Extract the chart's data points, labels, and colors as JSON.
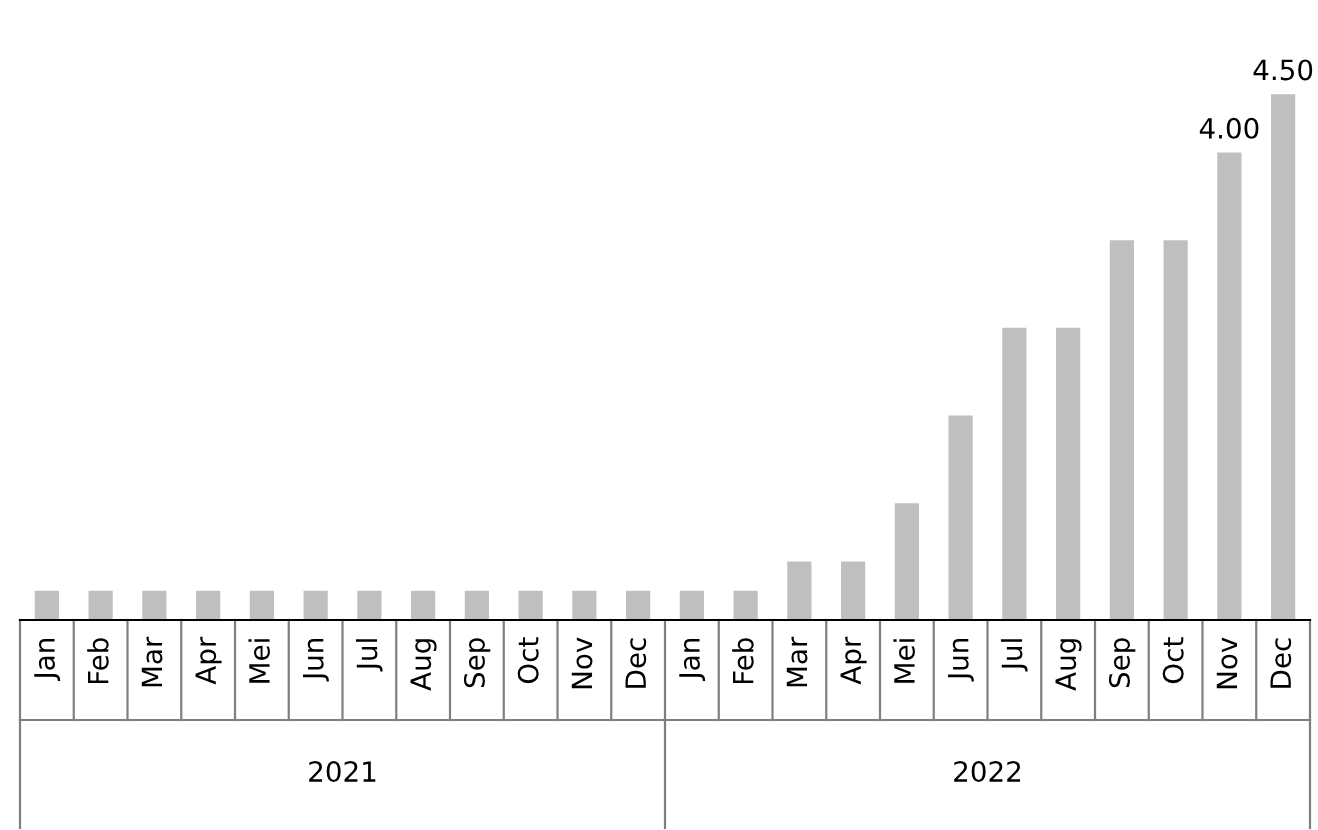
{
  "chart_data": {
    "type": "bar",
    "categories": [
      "Jan",
      "Feb",
      "Mar",
      "Apr",
      "Mei",
      "Jun",
      "Jul",
      "Aug",
      "Sep",
      "Oct",
      "Nov",
      "Dec",
      "Jan",
      "Feb",
      "Mar",
      "Apr",
      "Mei",
      "Jun",
      "Jul",
      "Aug",
      "Sep",
      "Oct",
      "Nov",
      "Dec"
    ],
    "values": [
      0.25,
      0.25,
      0.25,
      0.25,
      0.25,
      0.25,
      0.25,
      0.25,
      0.25,
      0.25,
      0.25,
      0.25,
      0.25,
      0.25,
      0.5,
      0.5,
      1.0,
      1.75,
      2.5,
      2.5,
      3.25,
      3.25,
      4.0,
      4.5
    ],
    "value_labels": [
      null,
      null,
      null,
      null,
      null,
      null,
      null,
      null,
      null,
      null,
      null,
      null,
      null,
      null,
      null,
      null,
      null,
      null,
      null,
      null,
      null,
      null,
      "4.00",
      "4.50"
    ],
    "color": "#bfbfbf",
    "annotations": [
      "2021",
      "2022"
    ],
    "grid": false,
    "legend": false
  }
}
